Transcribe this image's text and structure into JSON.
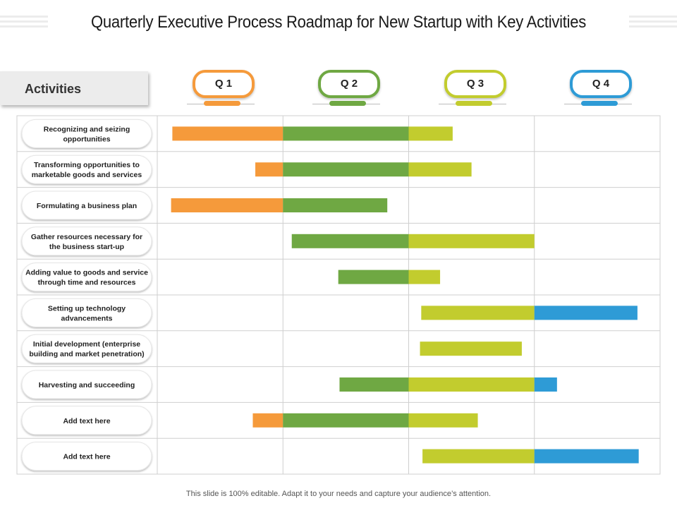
{
  "title": "Quarterly Executive Process Roadmap for New Startup with Key Activities",
  "activities_label": "Activities",
  "footer": "This slide is 100% editable. Adapt it to your needs and capture your audience’s attention.",
  "colors": {
    "q1": "#f59a3b",
    "q2": "#6fa843",
    "q3": "#c2cc2e",
    "q4": "#2e9bd6",
    "grid": "#cfcfcf"
  },
  "chart_data": {
    "type": "gantt",
    "title": "Quarterly Executive Process Roadmap for New Startup with Key Activities",
    "axis": "quarter (0 = start of Q1, 4 = end of Q4)",
    "xlim": [
      0,
      4
    ],
    "quarters": [
      "Q 1",
      "Q 2",
      "Q 3",
      "Q 4"
    ],
    "rows": [
      {
        "label": [
          "Recognizing and seizing",
          "opportunities"
        ],
        "start": 0.12,
        "end": 2.35
      },
      {
        "label": [
          "Transforming opportunities to",
          "marketable  goods and services"
        ],
        "start": 0.78,
        "end": 2.5
      },
      {
        "label": [
          "Formulating a business  plan"
        ],
        "start": 0.11,
        "end": 1.83
      },
      {
        "label": [
          "Gather resources  necessary  for",
          "the business  start-up"
        ],
        "start": 1.07,
        "end": 3.0
      },
      {
        "label": [
          "Adding value to goods and service",
          "through time and resources"
        ],
        "start": 1.44,
        "end": 2.25
      },
      {
        "label": [
          "Setting up technology",
          "advancements"
        ],
        "start": 2.1,
        "end": 3.82
      },
      {
        "label": [
          "Initial development (enterprise",
          "building and market penetration)"
        ],
        "start": 2.09,
        "end": 2.9
      },
      {
        "label": [
          "Harvesting and succeeding"
        ],
        "start": 1.45,
        "end": 3.18
      },
      {
        "label": [
          "Add text here"
        ],
        "start": 0.76,
        "end": 2.55
      },
      {
        "label": [
          "Add text here"
        ],
        "start": 2.11,
        "end": 3.83
      }
    ]
  }
}
